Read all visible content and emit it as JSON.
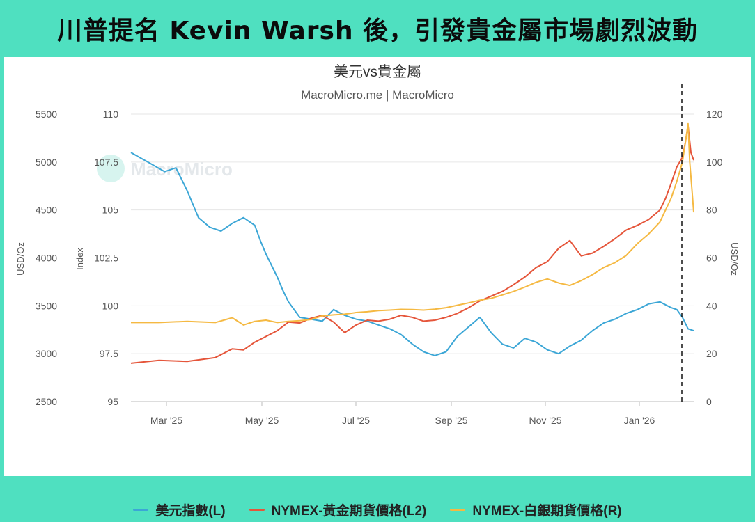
{
  "headline": "川普提名 Kevin Warsh 後，引發貴金屬市場劇烈波動",
  "chart_data": {
    "type": "line",
    "title": "美元vs貴金屬",
    "subtitle": "MacroMicro.me | MacroMicro",
    "watermark": "MacroMicro",
    "x_labels": [
      "Mar '25",
      "May '25",
      "Jul '25",
      "Sep '25",
      "Nov '25",
      "Jan '26"
    ],
    "axes": {
      "left_outer": {
        "label": "USD/Oz",
        "ticks": [
          "5500",
          "5000",
          "4500",
          "4000",
          "3500",
          "3000",
          "2500"
        ],
        "range": [
          2500,
          5500
        ]
      },
      "left_inner": {
        "label": "Index",
        "ticks": [
          "110",
          "107.5",
          "105",
          "102.5",
          "100",
          "97.5",
          "95"
        ],
        "range": [
          95,
          110
        ]
      },
      "right": {
        "label": "USD/Oz",
        "ticks": [
          "120",
          "100",
          "80",
          "60",
          "40",
          "20",
          "0"
        ],
        "range": [
          0,
          120
        ]
      }
    },
    "grid": true,
    "event_marker": "dashed vertical line near end of Jan '26",
    "series": [
      {
        "name": "美元指數(L)",
        "axis": "left_inner",
        "color": "#3ba6d6",
        "points": [
          [
            0.0,
            108.0
          ],
          [
            0.03,
            107.5
          ],
          [
            0.06,
            107.0
          ],
          [
            0.08,
            107.2
          ],
          [
            0.1,
            106.0
          ],
          [
            0.12,
            104.6
          ],
          [
            0.14,
            104.1
          ],
          [
            0.16,
            103.9
          ],
          [
            0.18,
            104.3
          ],
          [
            0.2,
            104.6
          ],
          [
            0.22,
            104.2
          ],
          [
            0.23,
            103.4
          ],
          [
            0.24,
            102.7
          ],
          [
            0.25,
            102.1
          ],
          [
            0.26,
            101.5
          ],
          [
            0.27,
            100.8
          ],
          [
            0.28,
            100.2
          ],
          [
            0.3,
            99.4
          ],
          [
            0.32,
            99.3
          ],
          [
            0.34,
            99.2
          ],
          [
            0.36,
            99.8
          ],
          [
            0.38,
            99.5
          ],
          [
            0.4,
            99.3
          ],
          [
            0.42,
            99.2
          ],
          [
            0.44,
            99.0
          ],
          [
            0.46,
            98.8
          ],
          [
            0.48,
            98.5
          ],
          [
            0.5,
            98.0
          ],
          [
            0.52,
            97.6
          ],
          [
            0.54,
            97.4
          ],
          [
            0.56,
            97.6
          ],
          [
            0.58,
            98.4
          ],
          [
            0.6,
            98.9
          ],
          [
            0.62,
            99.4
          ],
          [
            0.64,
            98.6
          ],
          [
            0.66,
            98.0
          ],
          [
            0.68,
            97.8
          ],
          [
            0.7,
            98.3
          ],
          [
            0.72,
            98.1
          ],
          [
            0.74,
            97.7
          ],
          [
            0.76,
            97.5
          ],
          [
            0.78,
            97.9
          ],
          [
            0.8,
            98.2
          ],
          [
            0.82,
            98.7
          ],
          [
            0.84,
            99.1
          ],
          [
            0.86,
            99.3
          ],
          [
            0.88,
            99.6
          ],
          [
            0.9,
            99.8
          ],
          [
            0.92,
            100.1
          ],
          [
            0.94,
            100.2
          ],
          [
            0.96,
            99.9
          ],
          [
            0.97,
            99.8
          ],
          [
            0.98,
            99.4
          ],
          [
            0.99,
            98.8
          ],
          [
            1.0,
            98.7
          ]
        ]
      },
      {
        "name": "NYMEX-黃金期貨價格(L2)",
        "axis": "left_outer",
        "color": "#e5553a",
        "points": [
          [
            0.0,
            2900
          ],
          [
            0.05,
            2930
          ],
          [
            0.1,
            2920
          ],
          [
            0.15,
            2960
          ],
          [
            0.18,
            3050
          ],
          [
            0.2,
            3040
          ],
          [
            0.22,
            3120
          ],
          [
            0.24,
            3180
          ],
          [
            0.26,
            3240
          ],
          [
            0.28,
            3330
          ],
          [
            0.3,
            3320
          ],
          [
            0.32,
            3370
          ],
          [
            0.34,
            3400
          ],
          [
            0.36,
            3330
          ],
          [
            0.38,
            3220
          ],
          [
            0.4,
            3300
          ],
          [
            0.42,
            3350
          ],
          [
            0.44,
            3340
          ],
          [
            0.46,
            3360
          ],
          [
            0.48,
            3400
          ],
          [
            0.5,
            3380
          ],
          [
            0.52,
            3340
          ],
          [
            0.54,
            3350
          ],
          [
            0.56,
            3380
          ],
          [
            0.58,
            3420
          ],
          [
            0.6,
            3480
          ],
          [
            0.62,
            3550
          ],
          [
            0.64,
            3600
          ],
          [
            0.66,
            3650
          ],
          [
            0.68,
            3720
          ],
          [
            0.7,
            3800
          ],
          [
            0.72,
            3900
          ],
          [
            0.74,
            3960
          ],
          [
            0.76,
            4100
          ],
          [
            0.78,
            4180
          ],
          [
            0.8,
            4020
          ],
          [
            0.82,
            4050
          ],
          [
            0.84,
            4120
          ],
          [
            0.86,
            4200
          ],
          [
            0.88,
            4290
          ],
          [
            0.9,
            4340
          ],
          [
            0.92,
            4400
          ],
          [
            0.94,
            4500
          ],
          [
            0.95,
            4620
          ],
          [
            0.96,
            4780
          ],
          [
            0.97,
            4950
          ],
          [
            0.98,
            5050
          ],
          [
            0.985,
            5200
          ],
          [
            0.99,
            5380
          ],
          [
            0.995,
            5100
          ],
          [
            1.0,
            5020
          ]
        ]
      },
      {
        "name": "NYMEX-白銀期貨價格(R)",
        "axis": "right",
        "color": "#f5b942",
        "points": [
          [
            0.0,
            33
          ],
          [
            0.05,
            33
          ],
          [
            0.1,
            33.5
          ],
          [
            0.15,
            33
          ],
          [
            0.18,
            35
          ],
          [
            0.2,
            32
          ],
          [
            0.22,
            33.5
          ],
          [
            0.24,
            34
          ],
          [
            0.26,
            33
          ],
          [
            0.28,
            33.5
          ],
          [
            0.3,
            33.8
          ],
          [
            0.32,
            34.3
          ],
          [
            0.34,
            35.8
          ],
          [
            0.36,
            36.2
          ],
          [
            0.38,
            36.5
          ],
          [
            0.4,
            37.2
          ],
          [
            0.42,
            37.5
          ],
          [
            0.44,
            38
          ],
          [
            0.46,
            38.2
          ],
          [
            0.48,
            38.5
          ],
          [
            0.5,
            38.4
          ],
          [
            0.52,
            38.2
          ],
          [
            0.54,
            38.6
          ],
          [
            0.56,
            39.2
          ],
          [
            0.58,
            40.2
          ],
          [
            0.6,
            41.2
          ],
          [
            0.62,
            42.3
          ],
          [
            0.64,
            43.1
          ],
          [
            0.66,
            44.5
          ],
          [
            0.68,
            46
          ],
          [
            0.7,
            47.8
          ],
          [
            0.72,
            49.8
          ],
          [
            0.74,
            51.2
          ],
          [
            0.76,
            49.5
          ],
          [
            0.78,
            48.5
          ],
          [
            0.8,
            50.5
          ],
          [
            0.82,
            53
          ],
          [
            0.84,
            56
          ],
          [
            0.86,
            58
          ],
          [
            0.88,
            61
          ],
          [
            0.9,
            66
          ],
          [
            0.92,
            70
          ],
          [
            0.94,
            75
          ],
          [
            0.95,
            80
          ],
          [
            0.96,
            85
          ],
          [
            0.97,
            92
          ],
          [
            0.98,
            100
          ],
          [
            0.985,
            108
          ],
          [
            0.99,
            116
          ],
          [
            0.993,
            100
          ],
          [
            0.997,
            88
          ],
          [
            1.0,
            79
          ]
        ]
      }
    ]
  }
}
